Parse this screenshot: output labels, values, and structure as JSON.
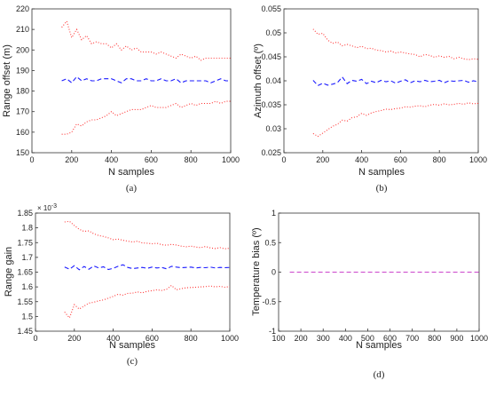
{
  "colors": {
    "mean": "#1a1aff",
    "bound": "#ff3333",
    "temperature_line": "#cc44cc",
    "axis": "#333333"
  },
  "chart_data": [
    {
      "type": "line",
      "panel_label": "(a)",
      "xlabel": "N samples",
      "ylabel": "Range offset (m)",
      "xlim": [
        0,
        1000
      ],
      "ylim": [
        150,
        220
      ],
      "xticks": [
        0,
        200,
        400,
        600,
        800,
        1000
      ],
      "yticks": [
        150,
        160,
        170,
        180,
        190,
        200,
        210,
        220
      ],
      "x": [
        150,
        175,
        200,
        225,
        250,
        275,
        300,
        325,
        350,
        375,
        400,
        425,
        450,
        475,
        500,
        525,
        550,
        575,
        600,
        625,
        650,
        675,
        700,
        725,
        750,
        775,
        800,
        825,
        850,
        875,
        900,
        925,
        950,
        975,
        1000
      ],
      "series": [
        {
          "role": "upper",
          "style": "dotted",
          "color": "#ff3333",
          "values": [
            211,
            214,
            206,
            210,
            205,
            207,
            203,
            204,
            203,
            203,
            201,
            203,
            200,
            202,
            200,
            201,
            199,
            199,
            199,
            198,
            199,
            198,
            197,
            196,
            198,
            197,
            196,
            197,
            195,
            196,
            196,
            196,
            196,
            196,
            196
          ]
        },
        {
          "role": "mean",
          "style": "dashed",
          "color": "#1a1aff",
          "values": [
            185,
            186,
            184,
            187,
            185,
            186,
            185,
            185,
            186,
            186,
            186,
            185,
            184,
            186,
            186,
            185,
            185,
            186,
            185,
            185,
            186,
            185,
            185,
            186,
            184,
            185,
            185,
            185,
            185,
            185,
            184,
            185,
            186,
            185,
            185
          ]
        },
        {
          "role": "lower",
          "style": "dotted",
          "color": "#ff3333",
          "values": [
            159,
            159,
            160,
            164,
            163,
            165,
            166,
            166,
            167,
            168,
            170,
            168,
            169,
            170,
            171,
            171,
            171,
            172,
            173,
            172,
            172,
            172,
            173,
            174,
            172,
            173,
            174,
            173,
            174,
            174,
            174,
            175,
            174,
            175,
            175
          ]
        }
      ]
    },
    {
      "type": "line",
      "panel_label": "(b)",
      "xlabel": "N samples",
      "ylabel": "Azimuth offset (º)",
      "xlim": [
        0,
        1000
      ],
      "ylim": [
        0.025,
        0.055
      ],
      "xticks": [
        0,
        200,
        400,
        600,
        800,
        1000
      ],
      "yticks": [
        0.025,
        0.03,
        0.035,
        0.04,
        0.045,
        0.05,
        0.055
      ],
      "ytick_labels": [
        "0.025",
        "0.03",
        "0.035",
        "0.04",
        "0.045",
        "0.05",
        "0.055"
      ],
      "x": [
        150,
        175,
        200,
        225,
        250,
        275,
        300,
        325,
        350,
        375,
        400,
        425,
        450,
        475,
        500,
        525,
        550,
        575,
        600,
        625,
        650,
        675,
        700,
        725,
        750,
        775,
        800,
        825,
        850,
        875,
        900,
        925,
        950,
        975,
        1000
      ],
      "series": [
        {
          "role": "upper",
          "style": "dotted",
          "color": "#ff3333",
          "values": [
            0.0508,
            0.0497,
            0.0499,
            0.0485,
            0.0478,
            0.0481,
            0.0473,
            0.0476,
            0.0473,
            0.0469,
            0.0472,
            0.0467,
            0.0468,
            0.0464,
            0.0463,
            0.046,
            0.0462,
            0.0458,
            0.046,
            0.0458,
            0.0456,
            0.0455,
            0.045,
            0.0455,
            0.0453,
            0.0449,
            0.0452,
            0.0449,
            0.0451,
            0.0446,
            0.0449,
            0.0446,
            0.0444,
            0.0446,
            0.0445
          ]
        },
        {
          "role": "mean",
          "style": "dashed",
          "color": "#1a1aff",
          "values": [
            0.0401,
            0.039,
            0.0395,
            0.0391,
            0.0393,
            0.0396,
            0.0408,
            0.0394,
            0.0401,
            0.0399,
            0.0403,
            0.0394,
            0.0399,
            0.0396,
            0.0401,
            0.0398,
            0.04,
            0.0395,
            0.0399,
            0.0402,
            0.0396,
            0.04,
            0.0398,
            0.0401,
            0.0398,
            0.0399,
            0.0401,
            0.0396,
            0.04,
            0.0399,
            0.04,
            0.0401,
            0.0397,
            0.04,
            0.0398
          ]
        },
        {
          "role": "lower",
          "style": "dotted",
          "color": "#ff3333",
          "values": [
            0.029,
            0.0284,
            0.0291,
            0.0298,
            0.0305,
            0.0309,
            0.0318,
            0.0316,
            0.0323,
            0.0325,
            0.0332,
            0.0328,
            0.0333,
            0.0336,
            0.0338,
            0.0341,
            0.034,
            0.0342,
            0.0343,
            0.0346,
            0.0345,
            0.0347,
            0.0348,
            0.0346,
            0.0349,
            0.0351,
            0.0349,
            0.0352,
            0.035,
            0.0351,
            0.0353,
            0.0351,
            0.0354,
            0.0352,
            0.0353
          ]
        }
      ]
    },
    {
      "type": "line",
      "panel_label": "(c)",
      "xlabel": "N samples",
      "ylabel": "Range gain",
      "exponent_label": "× 10",
      "exponent_value": "-3",
      "xlim": [
        0,
        1000
      ],
      "ylim": [
        1.45,
        1.85
      ],
      "xticks": [
        0,
        200,
        400,
        600,
        800,
        1000
      ],
      "yticks": [
        1.45,
        1.5,
        1.55,
        1.6,
        1.65,
        1.7,
        1.75,
        1.8,
        1.85
      ],
      "ytick_labels": [
        "1.45",
        "1.5",
        "1.55",
        "1.6",
        "1.65",
        "1.7",
        "1.75",
        "1.8",
        "1.85"
      ],
      "x": [
        150,
        175,
        200,
        225,
        250,
        275,
        300,
        325,
        350,
        375,
        400,
        425,
        450,
        475,
        500,
        525,
        550,
        575,
        600,
        625,
        650,
        675,
        700,
        725,
        750,
        775,
        800,
        825,
        850,
        875,
        900,
        925,
        950,
        975,
        1000
      ],
      "series": [
        {
          "role": "upper",
          "style": "dotted",
          "color": "#ff3333",
          "values": [
            1.82,
            1.822,
            1.808,
            1.795,
            1.788,
            1.79,
            1.78,
            1.774,
            1.771,
            1.766,
            1.76,
            1.762,
            1.758,
            1.755,
            1.752,
            1.755,
            1.749,
            1.748,
            1.746,
            1.748,
            1.743,
            1.741,
            1.744,
            1.742,
            1.738,
            1.736,
            1.738,
            1.735,
            1.733,
            1.737,
            1.732,
            1.73,
            1.733,
            1.729,
            1.731
          ]
        },
        {
          "role": "mean",
          "style": "dashed",
          "color": "#1a1aff",
          "values": [
            1.667,
            1.66,
            1.672,
            1.658,
            1.669,
            1.66,
            1.671,
            1.664,
            1.668,
            1.659,
            1.663,
            1.67,
            1.675,
            1.666,
            1.662,
            1.664,
            1.666,
            1.663,
            1.667,
            1.664,
            1.666,
            1.661,
            1.67,
            1.667,
            1.665,
            1.666,
            1.667,
            1.664,
            1.666,
            1.665,
            1.667,
            1.664,
            1.666,
            1.665,
            1.666
          ]
        },
        {
          "role": "lower",
          "style": "dotted",
          "color": "#ff3333",
          "values": [
            1.515,
            1.495,
            1.54,
            1.525,
            1.535,
            1.545,
            1.548,
            1.553,
            1.556,
            1.562,
            1.568,
            1.575,
            1.572,
            1.578,
            1.579,
            1.583,
            1.58,
            1.585,
            1.587,
            1.59,
            1.588,
            1.592,
            1.605,
            1.59,
            1.594,
            1.597,
            1.598,
            1.599,
            1.6,
            1.601,
            1.603,
            1.6,
            1.602,
            1.599,
            1.601
          ]
        }
      ]
    },
    {
      "type": "line",
      "panel_label": "(d)",
      "xlabel": "N samples",
      "ylabel": "Temperature bias (º)",
      "xlim": [
        100,
        1000
      ],
      "ylim": [
        -1,
        1
      ],
      "xticks": [
        100,
        200,
        300,
        400,
        500,
        600,
        700,
        800,
        900,
        1000
      ],
      "yticks": [
        -1,
        -0.5,
        0,
        0.5,
        1
      ],
      "ytick_labels": [
        "-1",
        "-0.5",
        "0",
        "0.5",
        "1"
      ],
      "x": [
        150,
        1000
      ],
      "series": [
        {
          "role": "bias",
          "style": "dashed",
          "color": "#cc44cc",
          "values": [
            0,
            0
          ]
        }
      ]
    }
  ]
}
